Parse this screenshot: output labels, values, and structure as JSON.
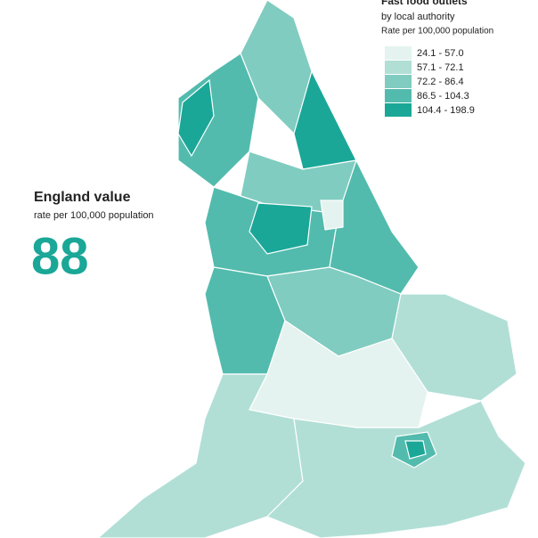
{
  "legend": {
    "title": "Fast food outlets",
    "subtitle": "by local authority",
    "note": "Rate per 100,000 population",
    "items": [
      {
        "label": "24.1 - 57.0",
        "color": "#e4f3ef"
      },
      {
        "label": "57.1 - 72.1",
        "color": "#b1dfd6"
      },
      {
        "label": "72.2 - 86.4",
        "color": "#80ccc0"
      },
      {
        "label": "86.5 - 104.3",
        "color": "#52bbad"
      },
      {
        "label": "104.4 - 198.9",
        "color": "#1aa797"
      }
    ]
  },
  "summary": {
    "title": "England value",
    "subtitle": "rate per 100,000 population",
    "value": 88,
    "color": "#1aa797"
  }
}
